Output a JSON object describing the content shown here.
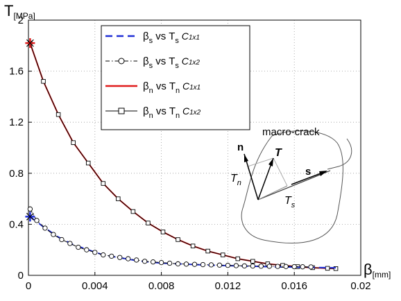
{
  "chart_data": {
    "type": "line",
    "xaxis": {
      "label": "β",
      "label_sub": "[mm]",
      "range": [
        0,
        0.02
      ],
      "ticks": [
        "0",
        "0.004",
        "0.008",
        "0.012",
        "0.016",
        "0.02"
      ],
      "tick_values": [
        0,
        0.004,
        0.008,
        0.012,
        0.016,
        0.02
      ]
    },
    "yaxis": {
      "label": "T",
      "label_sub": "[MPa]",
      "range": [
        0,
        2
      ],
      "ticks": [
        "0",
        "0.4",
        "0.8",
        "1.2",
        "1.6",
        "2"
      ],
      "tick_values": [
        0,
        0.4,
        0.8,
        1.2,
        1.6,
        2
      ]
    },
    "grid": "dotted",
    "legend_position": "top-center",
    "series": [
      {
        "id": "s1",
        "name": "βs vs Ts C1x1",
        "legend": {
          "a": "β",
          "as": "s",
          "b": " vs T",
          "bs": "s",
          "c": " C",
          "cs": "1x1"
        },
        "style": "dashed",
        "color": "#1f2ed6",
        "marker": "none",
        "x": [
          0.0001,
          0.0009,
          0.0018,
          0.0027,
          0.0036,
          0.0045,
          0.0054,
          0.0063,
          0.0072,
          0.0081,
          0.009,
          0.0099,
          0.0108,
          0.0117,
          0.0126,
          0.0135,
          0.0144,
          0.0153,
          0.0162,
          0.0171,
          0.018,
          0.0185
        ],
        "y": [
          0.46,
          0.38,
          0.3,
          0.24,
          0.2,
          0.16,
          0.14,
          0.12,
          0.105,
          0.095,
          0.09,
          0.085,
          0.08,
          0.077,
          0.074,
          0.071,
          0.068,
          0.066,
          0.064,
          0.062,
          0.06,
          0.059
        ]
      },
      {
        "id": "s2",
        "name": "βs vs Ts C1x2",
        "legend": {
          "a": "β",
          "as": "s",
          "b": " vs T",
          "bs": "s",
          "c": " C",
          "cs": "1x2"
        },
        "style": "dashdot",
        "color": "#000000",
        "marker": "circle",
        "x": [
          0.0001,
          0.0005,
          0.001,
          0.0015,
          0.002,
          0.0025,
          0.003,
          0.0035,
          0.004,
          0.0045,
          0.005,
          0.0055,
          0.006,
          0.0065,
          0.007,
          0.0075,
          0.008,
          0.0085,
          0.009,
          0.0095,
          0.01,
          0.0105,
          0.011,
          0.0115,
          0.012,
          0.0125,
          0.013,
          0.0135,
          0.014,
          0.0145,
          0.015,
          0.0155,
          0.016,
          0.0165,
          0.017
        ],
        "y": [
          0.52,
          0.43,
          0.37,
          0.32,
          0.28,
          0.25,
          0.22,
          0.2,
          0.18,
          0.16,
          0.15,
          0.14,
          0.13,
          0.12,
          0.11,
          0.105,
          0.1,
          0.095,
          0.09,
          0.088,
          0.086,
          0.084,
          0.082,
          0.08,
          0.078,
          0.076,
          0.074,
          0.073,
          0.072,
          0.071,
          0.07,
          0.069,
          0.068,
          0.067,
          0.066
        ]
      },
      {
        "id": "s3",
        "name": "βn vs Tn C1x1",
        "legend": {
          "a": "β",
          "as": "n",
          "b": " vs T",
          "bs": "n",
          "c": " C",
          "cs": "1x1"
        },
        "style": "solid",
        "color": "#e01b1b",
        "marker": "none",
        "x": [
          0.0001,
          0.0009,
          0.0018,
          0.0027,
          0.0036,
          0.0045,
          0.0054,
          0.0063,
          0.0072,
          0.0081,
          0.009,
          0.0099,
          0.0108,
          0.0117,
          0.0126,
          0.0135,
          0.0144,
          0.0153,
          0.0162,
          0.0171,
          0.018,
          0.0185
        ],
        "y": [
          1.82,
          1.52,
          1.26,
          1.04,
          0.88,
          0.72,
          0.6,
          0.5,
          0.41,
          0.34,
          0.28,
          0.23,
          0.19,
          0.16,
          0.13,
          0.11,
          0.09,
          0.078,
          0.068,
          0.06,
          0.055,
          0.053
        ]
      },
      {
        "id": "s4",
        "name": "βn vs Tn C1x2",
        "legend": {
          "a": "β",
          "as": "n",
          "b": " vs T",
          "bs": "n",
          "c": " C",
          "cs": "1x2"
        },
        "style": "solid",
        "color": "#000000",
        "marker": "square",
        "x": [
          0.0001,
          0.0009,
          0.0018,
          0.0027,
          0.0036,
          0.0045,
          0.0054,
          0.0063,
          0.0072,
          0.0081,
          0.009,
          0.0099,
          0.0108,
          0.0117,
          0.0126,
          0.0135,
          0.0144,
          0.0153,
          0.0162,
          0.0171,
          0.018,
          0.0185
        ],
        "y": [
          1.82,
          1.52,
          1.26,
          1.04,
          0.88,
          0.72,
          0.6,
          0.5,
          0.41,
          0.34,
          0.28,
          0.23,
          0.19,
          0.16,
          0.13,
          0.11,
          0.09,
          0.078,
          0.068,
          0.06,
          0.055,
          0.053
        ]
      }
    ],
    "start_markers": [
      {
        "x": 0.0001,
        "y": 1.82,
        "color": "#e01b1b"
      },
      {
        "x": 0.0001,
        "y": 0.46,
        "color": "#1f2ed6"
      }
    ],
    "inset": {
      "label": "macro-crack",
      "vector_T": "T",
      "vector_n": "n",
      "vector_s": "s",
      "comp_Tn": "T",
      "comp_Tn_sub": "n",
      "comp_Ts": "T",
      "comp_Ts_sub": "s"
    }
  }
}
